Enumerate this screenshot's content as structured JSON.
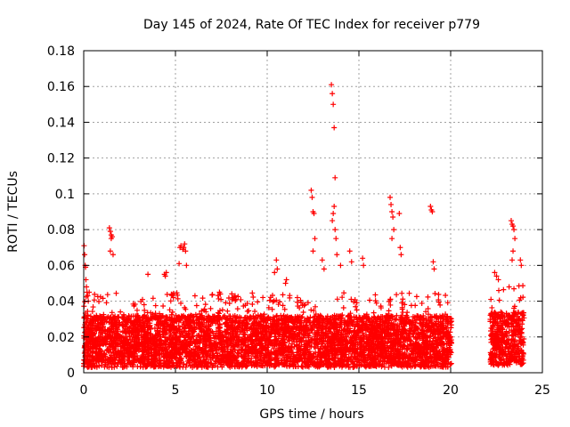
{
  "chart_data": {
    "type": "scatter",
    "title": "Day 145 of 2024, Rate Of TEC Index for receiver p779",
    "xlabel": "GPS time / hours",
    "ylabel": "ROTI / TECUs",
    "xlim": [
      0,
      25
    ],
    "ylim": [
      0,
      0.18
    ],
    "xticks": [
      0,
      5,
      10,
      15,
      20,
      25
    ],
    "yticks": [
      0,
      0.02,
      0.04,
      0.06,
      0.08,
      0.1,
      0.12,
      0.14,
      0.16,
      0.18
    ],
    "xtick_labels": [
      "0",
      "5",
      "10",
      "15",
      "20",
      "25"
    ],
    "ytick_labels": [
      "0",
      "0.02",
      "0.04",
      "0.06",
      "0.08",
      "0.1",
      "0.12",
      "0.14",
      "0.16",
      "0.18"
    ],
    "grid": true,
    "marker": "+",
    "color": "#ff0000",
    "series": [
      {
        "name": "ROTI",
        "x": [
          0.02,
          0.05,
          0.08,
          0.1,
          0.12,
          0.15,
          0.18,
          0.22,
          0.25,
          0.3,
          1.4,
          1.45,
          1.5,
          1.55,
          1.5,
          1.45,
          1.6,
          3.5,
          4.4,
          4.45,
          4.5,
          5.2,
          5.25,
          5.3,
          5.4,
          5.45,
          5.5,
          5.55,
          5.6,
          7.4,
          7.45,
          8.2,
          8.25,
          8.3,
          10.4,
          10.5,
          10.55,
          11.0,
          11.05,
          12.4,
          12.45,
          12.5,
          12.55,
          12.6,
          12.5,
          13.0,
          13.1,
          13.5,
          13.55,
          13.6,
          13.65,
          13.7,
          13.65,
          13.6,
          13.55,
          13.7,
          13.75,
          13.8,
          14.0,
          14.5,
          14.6,
          15.2,
          15.25,
          16.7,
          16.75,
          16.8,
          16.85,
          16.9,
          16.8,
          17.2,
          17.25,
          17.3,
          18.9,
          18.95,
          19.0,
          19.05,
          19.1,
          23.3,
          23.35,
          23.4,
          23.45,
          23.5,
          23.4,
          23.35,
          23.8,
          23.85,
          22.4,
          22.5,
          22.6
        ],
        "y": [
          0.071,
          0.066,
          0.06,
          0.059,
          0.052,
          0.048,
          0.045,
          0.043,
          0.04,
          0.045,
          0.081,
          0.079,
          0.077,
          0.076,
          0.075,
          0.068,
          0.066,
          0.055,
          0.055,
          0.054,
          0.056,
          0.061,
          0.07,
          0.071,
          0.069,
          0.07,
          0.072,
          0.068,
          0.06,
          0.045,
          0.044,
          0.042,
          0.043,
          0.041,
          0.056,
          0.063,
          0.058,
          0.05,
          0.052,
          0.102,
          0.098,
          0.09,
          0.089,
          0.075,
          0.068,
          0.063,
          0.058,
          0.161,
          0.156,
          0.15,
          0.137,
          0.109,
          0.093,
          0.089,
          0.085,
          0.08,
          0.075,
          0.066,
          0.06,
          0.068,
          0.062,
          0.064,
          0.06,
          0.098,
          0.094,
          0.09,
          0.087,
          0.08,
          0.075,
          0.089,
          0.07,
          0.066,
          0.093,
          0.091,
          0.09,
          0.062,
          0.058,
          0.085,
          0.083,
          0.082,
          0.08,
          0.075,
          0.068,
          0.063,
          0.063,
          0.06,
          0.056,
          0.054,
          0.052
        ]
      }
    ],
    "density_bands": [
      {
        "x_start": 0.0,
        "x_end": 20.05,
        "base_min": 0.003,
        "base_max": 0.032,
        "spike_max": 0.045
      },
      {
        "x_start": 22.15,
        "x_end": 24.0,
        "base_min": 0.004,
        "base_max": 0.034,
        "spike_max": 0.05
      }
    ]
  }
}
